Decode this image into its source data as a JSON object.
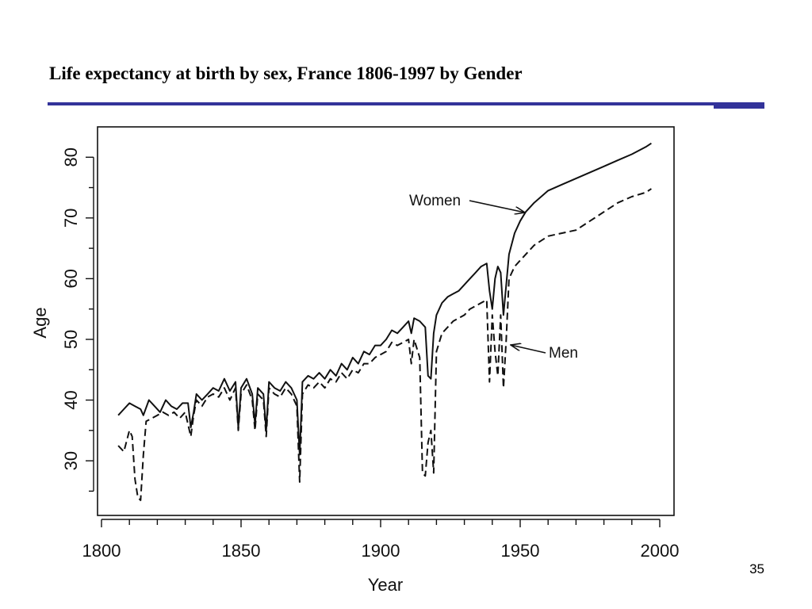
{
  "slide": {
    "title": "Life expectancy at birth by sex, France 1806-1997 by Gender",
    "page_number": "35",
    "rule_color": "#33339a"
  },
  "chart_data": {
    "type": "line",
    "title": "",
    "xlabel": "Year",
    "ylabel": "Age",
    "xlim": [
      1800,
      2000
    ],
    "ylim": [
      21,
      85
    ],
    "x_ticks": [
      1800,
      1850,
      1900,
      1950,
      2000
    ],
    "y_ticks": [
      30,
      40,
      50,
      60,
      70,
      80
    ],
    "grid": false,
    "legend": "none",
    "series": [
      {
        "name": "Women",
        "line_style": "solid",
        "color": "#111111",
        "x": [
          1806,
          1808,
          1810,
          1812,
          1814,
          1815,
          1817,
          1819,
          1821,
          1823,
          1825,
          1827,
          1829,
          1831,
          1832,
          1833,
          1834,
          1836,
          1838,
          1840,
          1842,
          1844,
          1846,
          1848,
          1849,
          1850,
          1852,
          1854,
          1855,
          1856,
          1858,
          1859,
          1860,
          1862,
          1864,
          1866,
          1868,
          1870,
          1871,
          1872,
          1874,
          1876,
          1878,
          1880,
          1882,
          1884,
          1886,
          1888,
          1890,
          1892,
          1894,
          1896,
          1898,
          1900,
          1902,
          1904,
          1906,
          1908,
          1910,
          1911,
          1912,
          1914,
          1916,
          1917,
          1918,
          1919,
          1920,
          1922,
          1924,
          1926,
          1928,
          1930,
          1932,
          1934,
          1936,
          1938,
          1939,
          1940,
          1941,
          1942,
          1943,
          1944,
          1945,
          1946,
          1948,
          1950,
          1952,
          1955,
          1960,
          1965,
          1970,
          1975,
          1980,
          1985,
          1990,
          1995,
          1997
        ],
        "y": [
          37.5,
          38.5,
          39.5,
          39,
          38.5,
          37.5,
          40,
          39,
          38,
          40,
          39,
          38.5,
          39.5,
          39.5,
          35.5,
          38,
          41,
          40,
          41,
          42,
          41.5,
          43.5,
          41.5,
          43,
          35.5,
          42,
          43.5,
          41,
          36,
          42,
          41,
          35,
          43,
          42,
          41.5,
          43,
          42,
          40,
          31,
          43,
          44,
          43.5,
          44.5,
          43.5,
          45,
          44,
          46,
          45,
          47,
          46,
          48,
          47.5,
          49,
          49,
          50,
          51.5,
          51,
          52,
          53,
          51,
          53.5,
          53,
          52,
          44,
          43.5,
          51,
          54,
          56,
          57,
          57.5,
          58,
          59,
          60,
          61,
          62,
          62.5,
          58,
          55,
          60,
          62,
          61,
          54,
          59,
          64,
          67.5,
          69.5,
          71,
          72.5,
          74.5,
          75.5,
          76.5,
          77.5,
          78.5,
          79.5,
          80.5,
          81.7,
          82.3
        ]
      },
      {
        "name": "Men",
        "line_style": "dashed",
        "color": "#111111",
        "x": [
          1806,
          1808,
          1810,
          1811,
          1812,
          1813,
          1814,
          1815,
          1816,
          1818,
          1820,
          1822,
          1824,
          1826,
          1828,
          1830,
          1832,
          1833,
          1834,
          1836,
          1838,
          1840,
          1842,
          1844,
          1846,
          1848,
          1849,
          1850,
          1852,
          1854,
          1855,
          1856,
          1858,
          1859,
          1860,
          1862,
          1864,
          1866,
          1868,
          1870,
          1871,
          1872,
          1874,
          1876,
          1878,
          1880,
          1882,
          1884,
          1886,
          1888,
          1890,
          1892,
          1894,
          1896,
          1898,
          1900,
          1902,
          1904,
          1906,
          1908,
          1910,
          1911,
          1912,
          1914,
          1915,
          1916,
          1917,
          1918,
          1919,
          1920,
          1922,
          1924,
          1926,
          1928,
          1930,
          1932,
          1934,
          1936,
          1938,
          1939,
          1940,
          1941,
          1942,
          1943,
          1944,
          1945,
          1946,
          1948,
          1950,
          1952,
          1955,
          1960,
          1965,
          1970,
          1975,
          1980,
          1985,
          1990,
          1995,
          1997
        ],
        "y": [
          32.5,
          31.5,
          35,
          34,
          27,
          24,
          23.5,
          31,
          36.5,
          37,
          37.5,
          38,
          37.5,
          38,
          37,
          38,
          34,
          37.5,
          40,
          39,
          40.5,
          41,
          40.5,
          42,
          40,
          42,
          35,
          41,
          42.5,
          40,
          35,
          41,
          40,
          34,
          42,
          41,
          40.5,
          42,
          41,
          39,
          26.5,
          41,
          42.5,
          42,
          43,
          42,
          43.5,
          43,
          44.5,
          43.5,
          45,
          44.5,
          46,
          46,
          47,
          47.5,
          48,
          49.5,
          49,
          49.5,
          50,
          46,
          50,
          47,
          28,
          27.5,
          33,
          35,
          28,
          48,
          51,
          52,
          53,
          53.5,
          54,
          55,
          55.5,
          56,
          56.5,
          43,
          54,
          48,
          44,
          54,
          42,
          50,
          60,
          62,
          63,
          64,
          65.5,
          67,
          67.5,
          68,
          69.5,
          71,
          72.5,
          73.5,
          74.2,
          74.8
        ]
      }
    ],
    "annotations": [
      {
        "text": "Women",
        "series": "Women",
        "points_to_x": 1951
      },
      {
        "text": "Men",
        "series": "Men",
        "points_to_x": 1946
      }
    ]
  }
}
